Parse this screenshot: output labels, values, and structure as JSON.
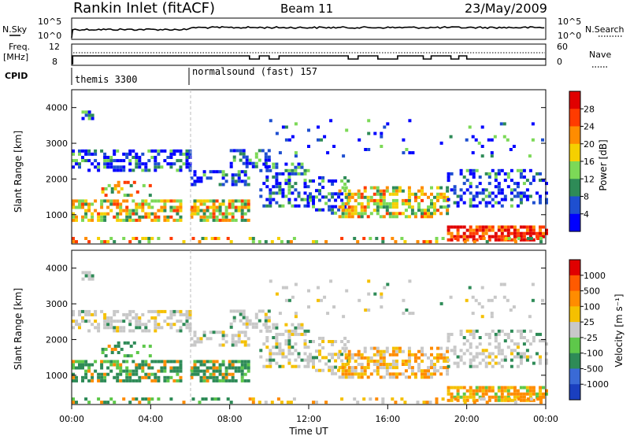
{
  "header": {
    "station": "Rankin Inlet (fitACF)",
    "beam": "Beam 11",
    "date": "23/May/2009"
  },
  "top_panels": {
    "nsky_label": "N.Sky",
    "nsky_ticks": [
      "10^5",
      "10^0"
    ],
    "nsearch_label": "N.Search",
    "nsearch_ticks": [
      "10^5",
      "10^0"
    ],
    "freq_label": "Freq.",
    "freq_unit": "[MHz]",
    "freq_ticks": [
      "12",
      "8"
    ],
    "nave_label": "Nave",
    "nave_ticks": [
      "60",
      "0"
    ],
    "cpid_label": "CPID",
    "modes": [
      {
        "name": "themis 3300",
        "start_hour": 0
      },
      {
        "name": "normalsound (fast) 157",
        "start_hour": 6
      }
    ]
  },
  "chart_data": [
    {
      "type": "heatmap",
      "name": "power",
      "ylabel": "Slant Range [km]",
      "ylim": [
        180,
        4500
      ],
      "yticks": [
        1000,
        2000,
        3000,
        4000
      ],
      "xlim": [
        0,
        24
      ],
      "colorbar_label": "Power [dB]",
      "colorbar_ticks": [
        "28",
        "24",
        "20",
        "16",
        "12",
        "8",
        "4"
      ],
      "colorbar_colors": [
        "#0000ff",
        "#1e4fd0",
        "#2e8b57",
        "#7cd957",
        "#f5d000",
        "#ff8c00",
        "#ff3b00",
        "#e00000"
      ]
    },
    {
      "type": "heatmap",
      "name": "velocity",
      "ylabel": "Slant Range [km]",
      "ylim": [
        180,
        4500
      ],
      "yticks": [
        1000,
        2000,
        3000,
        4000
      ],
      "xlim": [
        0,
        24
      ],
      "colorbar_label": "Velocity [m s⁻¹]",
      "colorbar_ticks": [
        "1000",
        "500",
        "100",
        "25",
        "-25",
        "-100",
        "-500",
        "-1000"
      ],
      "colorbar_colors": [
        "#1a3fbf",
        "#3a6ad6",
        "#2e8b57",
        "#5ec84a",
        "#c8c8c8",
        "#f5c000",
        "#ff8c00",
        "#ff5a00",
        "#e00000"
      ]
    }
  ],
  "time_axis": {
    "ticks": [
      "00:00",
      "04:00",
      "08:00",
      "12:00",
      "16:00",
      "20:00",
      "00:00"
    ],
    "label": "Time UT"
  }
}
